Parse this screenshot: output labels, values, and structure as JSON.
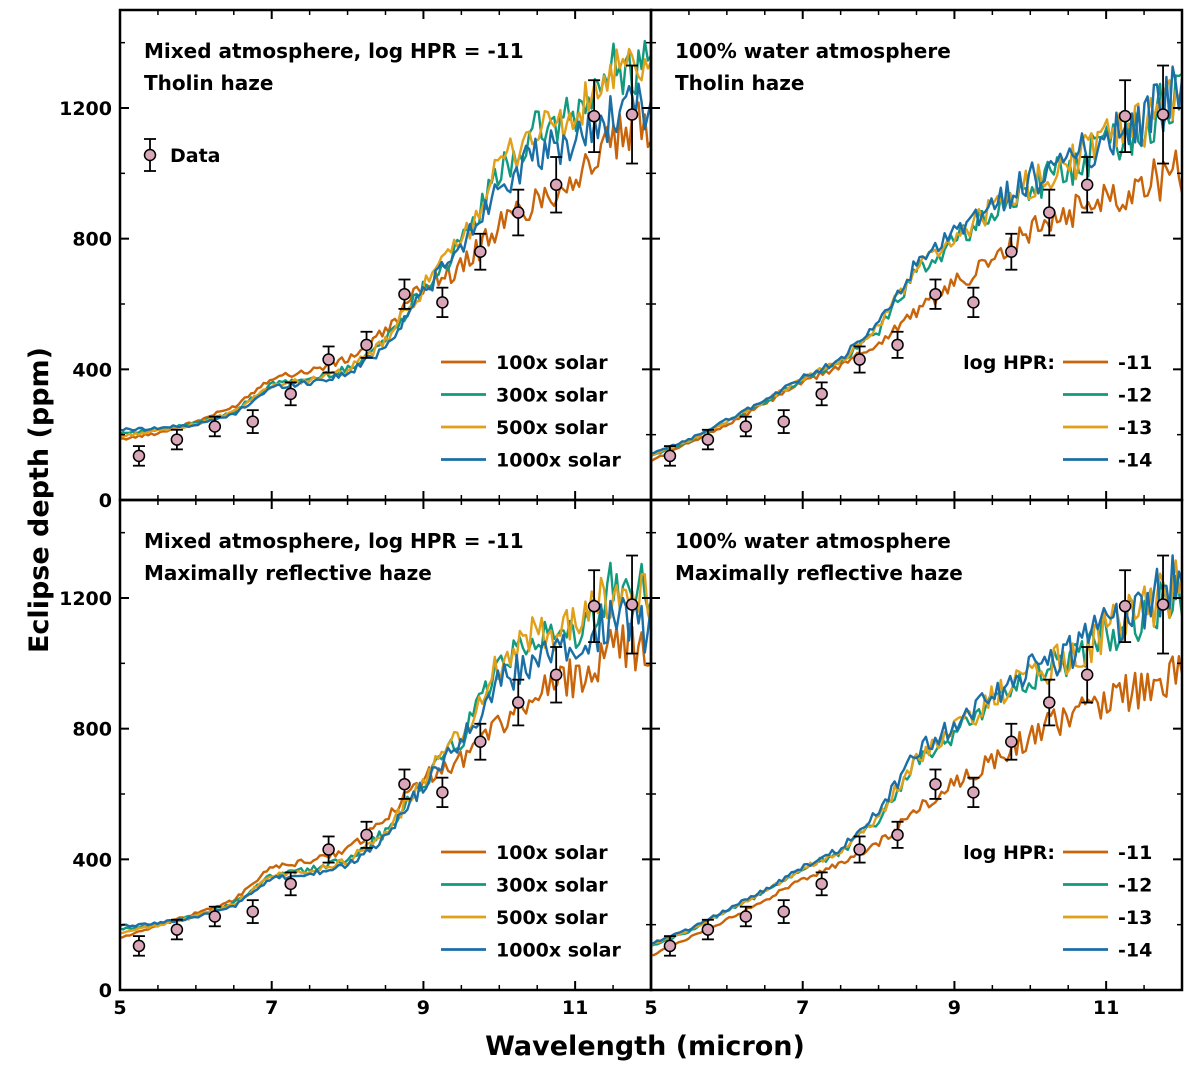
{
  "figure": {
    "xlabel": "Wavelength (micron)",
    "ylabel": "Eclipse depth (ppm)"
  },
  "colors": {
    "c100": "#c8640a",
    "c300": "#119a7e",
    "c500": "#e1a01a",
    "c1000": "#1a6fa6",
    "data_fill": "#d9a5b8",
    "axis": "#000000"
  },
  "chart_data": [
    {
      "type": "line",
      "panel": "top-left",
      "title_lines": [
        "Mixed atmosphere, log HPR = -11",
        "Tholin haze"
      ],
      "xlim": [
        5,
        12
      ],
      "ylim": [
        0,
        1500
      ],
      "xticks": [
        5,
        7,
        9,
        11
      ],
      "yticks": [
        0,
        400,
        800,
        1200
      ],
      "legend_placement": "bottom-right",
      "legend_title": "",
      "data_legend": "Data",
      "series": [
        {
          "name": "100x solar",
          "color_key": "c100",
          "x": [
            5.0,
            5.5,
            6.0,
            6.5,
            7.0,
            7.5,
            8.0,
            8.5,
            9.0,
            9.5,
            10.0,
            10.5,
            11.0,
            11.5,
            12.0
          ],
          "y": [
            185,
            205,
            240,
            285,
            375,
            395,
            430,
            515,
            660,
            710,
            840,
            920,
            990,
            1090,
            1160
          ]
        },
        {
          "name": "300x solar",
          "color_key": "c300",
          "x": [
            5.0,
            5.5,
            6.0,
            6.5,
            7.0,
            7.5,
            8.0,
            8.5,
            9.0,
            9.5,
            10.0,
            10.5,
            11.0,
            11.5,
            12.0
          ],
          "y": [
            205,
            215,
            235,
            270,
            355,
            370,
            400,
            490,
            650,
            780,
            1000,
            1130,
            1170,
            1320,
            1330
          ]
        },
        {
          "name": "500x solar",
          "color_key": "c500",
          "x": [
            5.0,
            5.5,
            6.0,
            6.5,
            7.0,
            7.5,
            8.0,
            8.5,
            9.0,
            9.5,
            10.0,
            10.5,
            11.0,
            11.5,
            12.0
          ],
          "y": [
            195,
            212,
            232,
            268,
            352,
            368,
            395,
            485,
            652,
            790,
            1020,
            1140,
            1160,
            1310,
            1290
          ]
        },
        {
          "name": "1000x solar",
          "color_key": "c1000",
          "x": [
            5.0,
            5.5,
            6.0,
            6.5,
            7.0,
            7.5,
            8.0,
            8.5,
            9.0,
            9.5,
            10.0,
            10.5,
            11.0,
            11.5,
            12.0
          ],
          "y": [
            215,
            220,
            230,
            262,
            345,
            360,
            385,
            470,
            640,
            770,
            970,
            1050,
            1100,
            1180,
            1200
          ]
        }
      ],
      "data_points": {
        "x": [
          5.25,
          5.75,
          6.25,
          6.75,
          7.25,
          7.75,
          8.25,
          8.75,
          9.25,
          9.75,
          10.25,
          10.75,
          11.25,
          11.75
        ],
        "y": [
          135,
          185,
          225,
          240,
          325,
          430,
          475,
          630,
          605,
          760,
          880,
          965,
          1175,
          1180
        ],
        "err": [
          30,
          30,
          30,
          35,
          35,
          40,
          40,
          45,
          45,
          55,
          70,
          85,
          110,
          150
        ]
      }
    },
    {
      "type": "line",
      "panel": "top-right",
      "title_lines": [
        "100% water atmosphere",
        "Tholin haze"
      ],
      "xlim": [
        5,
        12
      ],
      "ylim": [
        0,
        1500
      ],
      "xticks": [
        5,
        7,
        9,
        11
      ],
      "yticks": [
        0,
        400,
        800,
        1200
      ],
      "legend_placement": "bottom-right",
      "legend_title": "log HPR:",
      "series": [
        {
          "name": "-11",
          "color_key": "c100",
          "x": [
            5.0,
            5.5,
            6.0,
            6.5,
            7.0,
            7.5,
            8.0,
            8.5,
            9.0,
            9.5,
            10.0,
            10.5,
            11.0,
            11.5,
            12.0
          ],
          "y": [
            120,
            175,
            230,
            295,
            360,
            410,
            480,
            580,
            660,
            730,
            820,
            880,
            930,
            970,
            1010
          ]
        },
        {
          "name": "-12",
          "color_key": "c300",
          "x": [
            5.0,
            5.5,
            6.0,
            6.5,
            7.0,
            7.5,
            8.0,
            8.5,
            9.0,
            9.5,
            10.0,
            10.5,
            11.0,
            11.5,
            12.0
          ],
          "y": [
            135,
            180,
            240,
            300,
            370,
            420,
            520,
            700,
            790,
            880,
            960,
            1010,
            1090,
            1150,
            1250
          ]
        },
        {
          "name": "-13",
          "color_key": "c500",
          "x": [
            5.0,
            5.5,
            6.0,
            6.5,
            7.0,
            7.5,
            8.0,
            8.5,
            9.0,
            9.5,
            10.0,
            10.5,
            11.0,
            11.5,
            12.0
          ],
          "y": [
            138,
            182,
            242,
            302,
            372,
            425,
            530,
            710,
            800,
            890,
            970,
            1020,
            1100,
            1160,
            1255
          ]
        },
        {
          "name": "-14",
          "color_key": "c1000",
          "x": [
            5.0,
            5.5,
            6.0,
            6.5,
            7.0,
            7.5,
            8.0,
            8.5,
            9.0,
            9.5,
            10.0,
            10.5,
            11.0,
            11.5,
            12.0
          ],
          "y": [
            140,
            185,
            245,
            305,
            375,
            430,
            540,
            720,
            810,
            900,
            980,
            1030,
            1110,
            1170,
            1260
          ]
        }
      ],
      "data_points": {
        "x": [
          5.25,
          5.75,
          6.25,
          6.75,
          7.25,
          7.75,
          8.25,
          8.75,
          9.25,
          9.75,
          10.25,
          10.75,
          11.25,
          11.75
        ],
        "y": [
          135,
          185,
          225,
          240,
          325,
          430,
          475,
          630,
          605,
          760,
          880,
          965,
          1175,
          1180
        ],
        "err": [
          30,
          30,
          30,
          35,
          35,
          40,
          40,
          45,
          45,
          55,
          70,
          85,
          110,
          150
        ]
      }
    },
    {
      "type": "line",
      "panel": "bottom-left",
      "title_lines": [
        "Mixed atmosphere, log HPR = -11",
        "Maximally reflective haze"
      ],
      "xlim": [
        5,
        12
      ],
      "ylim": [
        0,
        1500
      ],
      "xticks": [
        5,
        7,
        9,
        11
      ],
      "yticks": [
        0,
        400,
        800,
        1200
      ],
      "legend_placement": "bottom-right",
      "legend_title": "",
      "series": [
        {
          "name": "100x solar",
          "color_key": "c100",
          "x": [
            5.0,
            5.5,
            6.0,
            6.5,
            7.0,
            7.5,
            8.0,
            8.5,
            9.0,
            9.5,
            10.0,
            10.5,
            11.0,
            11.5,
            12.0
          ],
          "y": [
            160,
            195,
            235,
            275,
            375,
            395,
            430,
            520,
            650,
            710,
            820,
            900,
            960,
            1040,
            1060
          ]
        },
        {
          "name": "300x solar",
          "color_key": "c300",
          "x": [
            5.0,
            5.5,
            6.0,
            6.5,
            7.0,
            7.5,
            8.0,
            8.5,
            9.0,
            9.5,
            10.0,
            10.5,
            11.0,
            11.5,
            12.0
          ],
          "y": [
            185,
            200,
            228,
            265,
            352,
            368,
            398,
            485,
            640,
            770,
            975,
            1080,
            1110,
            1240,
            1240
          ]
        },
        {
          "name": "500x solar",
          "color_key": "c500",
          "x": [
            5.0,
            5.5,
            6.0,
            6.5,
            7.0,
            7.5,
            8.0,
            8.5,
            9.0,
            9.5,
            10.0,
            10.5,
            11.0,
            11.5,
            12.0
          ],
          "y": [
            175,
            198,
            225,
            262,
            350,
            365,
            395,
            480,
            645,
            785,
            995,
            1100,
            1115,
            1230,
            1200
          ]
        },
        {
          "name": "1000x solar",
          "color_key": "c1000",
          "x": [
            5.0,
            5.5,
            6.0,
            6.5,
            7.0,
            7.5,
            8.0,
            8.5,
            9.0,
            9.5,
            10.0,
            10.5,
            11.0,
            11.5,
            12.0
          ],
          "y": [
            195,
            205,
            222,
            255,
            340,
            355,
            380,
            465,
            630,
            760,
            945,
            1010,
            1060,
            1130,
            1100
          ]
        }
      ],
      "data_points": {
        "x": [
          5.25,
          5.75,
          6.25,
          6.75,
          7.25,
          7.75,
          8.25,
          8.75,
          9.25,
          9.75,
          10.25,
          10.75,
          11.25,
          11.75
        ],
        "y": [
          135,
          185,
          225,
          240,
          325,
          430,
          475,
          630,
          605,
          760,
          880,
          965,
          1175,
          1180
        ],
        "err": [
          30,
          30,
          30,
          35,
          35,
          40,
          40,
          45,
          45,
          55,
          70,
          85,
          110,
          150
        ]
      }
    },
    {
      "type": "line",
      "panel": "bottom-right",
      "title_lines": [
        "100% water atmosphere",
        "Maximally reflective haze"
      ],
      "xlim": [
        5,
        12
      ],
      "ylim": [
        0,
        1500
      ],
      "xticks": [
        5,
        7,
        9,
        11
      ],
      "yticks": [
        0,
        400,
        800,
        1200
      ],
      "legend_placement": "bottom-right",
      "legend_title": "log HPR:",
      "series": [
        {
          "name": "-11",
          "color_key": "c100",
          "x": [
            5.0,
            5.5,
            6.0,
            6.5,
            7.0,
            7.5,
            8.0,
            8.5,
            9.0,
            9.5,
            10.0,
            10.5,
            11.0,
            11.5,
            12.0
          ],
          "y": [
            105,
            160,
            215,
            275,
            340,
            385,
            450,
            550,
            630,
            700,
            780,
            840,
            890,
            930,
            960
          ]
        },
        {
          "name": "-12",
          "color_key": "c300",
          "x": [
            5.0,
            5.5,
            6.0,
            6.5,
            7.0,
            7.5,
            8.0,
            8.5,
            9.0,
            9.5,
            10.0,
            10.5,
            11.0,
            11.5,
            12.0
          ],
          "y": [
            135,
            180,
            240,
            300,
            370,
            420,
            520,
            700,
            790,
            880,
            960,
            1010,
            1090,
            1150,
            1240
          ]
        },
        {
          "name": "-13",
          "color_key": "c500",
          "x": [
            5.0,
            5.5,
            6.0,
            6.5,
            7.0,
            7.5,
            8.0,
            8.5,
            9.0,
            9.5,
            10.0,
            10.5,
            11.0,
            11.5,
            12.0
          ],
          "y": [
            138,
            182,
            242,
            302,
            372,
            425,
            530,
            710,
            800,
            890,
            970,
            1020,
            1100,
            1160,
            1250
          ]
        },
        {
          "name": "-14",
          "color_key": "c1000",
          "x": [
            5.0,
            5.5,
            6.0,
            6.5,
            7.0,
            7.5,
            8.0,
            8.5,
            9.0,
            9.5,
            10.0,
            10.5,
            11.0,
            11.5,
            12.0
          ],
          "y": [
            142,
            186,
            246,
            306,
            376,
            432,
            545,
            725,
            815,
            905,
            985,
            1035,
            1115,
            1175,
            1265
          ]
        }
      ],
      "data_points": {
        "x": [
          5.25,
          5.75,
          6.25,
          6.75,
          7.25,
          7.75,
          8.25,
          8.75,
          9.25,
          9.75,
          10.25,
          10.75,
          11.25,
          11.75
        ],
        "y": [
          135,
          185,
          225,
          240,
          325,
          430,
          475,
          630,
          605,
          760,
          880,
          965,
          1175,
          1180
        ],
        "err": [
          30,
          30,
          30,
          35,
          35,
          40,
          40,
          45,
          45,
          55,
          70,
          85,
          110,
          150
        ]
      }
    }
  ]
}
